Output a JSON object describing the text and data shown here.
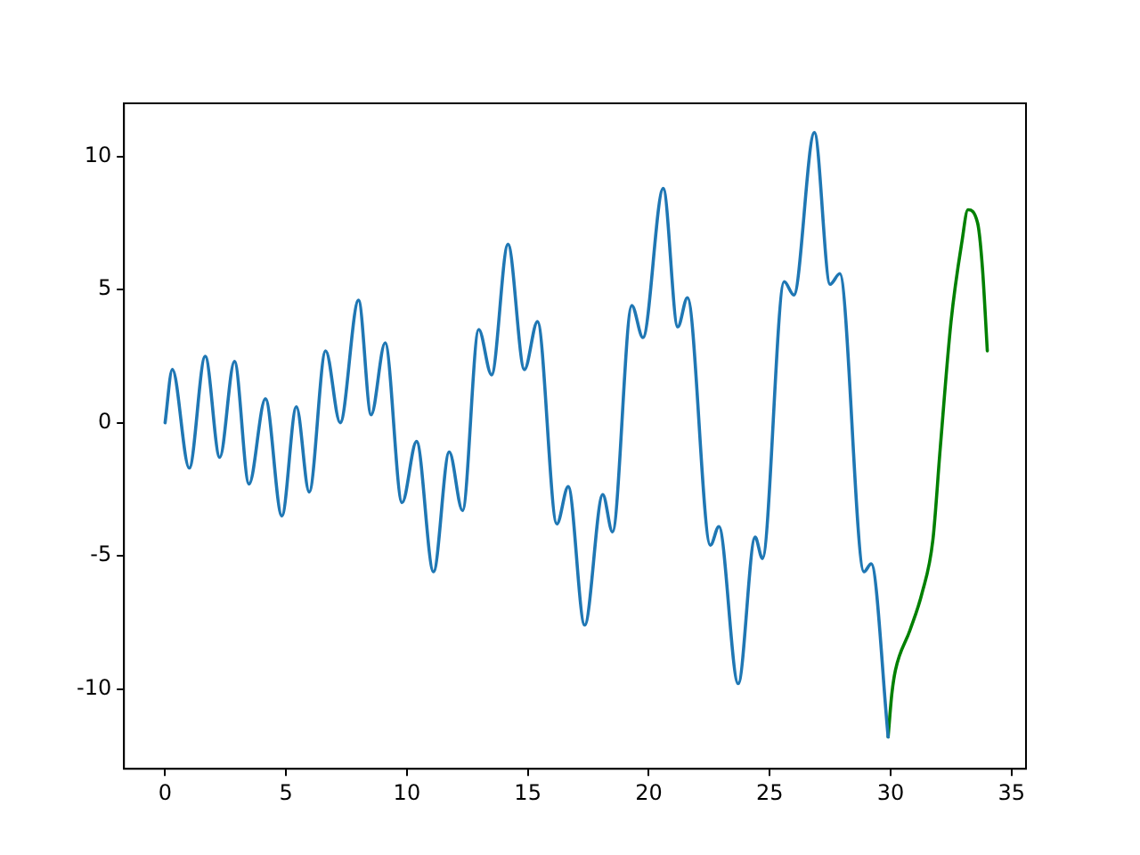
{
  "chart_data": {
    "type": "line",
    "xlim": [
      -1.7,
      35.6
    ],
    "ylim": [
      -13.0,
      12.0
    ],
    "xticks": [
      0,
      5,
      10,
      15,
      20,
      25,
      30,
      35
    ],
    "yticks": [
      -10,
      -5,
      0,
      5,
      10
    ],
    "grid": false,
    "legend": false,
    "marker": "none",
    "line_style": "solid",
    "series": [
      {
        "color": "#1f77b4",
        "x": [
          0,
          0.3,
          1.0,
          1.66,
          2.26,
          2.87,
          3.47,
          4.15,
          4.83,
          5.43,
          5.96,
          6.64,
          7.24,
          8.0,
          8.52,
          9.1,
          9.8,
          10.4,
          11.1,
          11.75,
          12.3,
          12.97,
          13.5,
          14.18,
          14.86,
          15.4,
          16.2,
          16.67,
          17.35,
          18.1,
          18.5,
          19.3,
          19.76,
          20.6,
          21.2,
          21.6,
          22.55,
          22.9,
          23.7,
          24.4,
          24.7,
          25.6,
          26.0,
          26.85,
          27.5,
          27.9,
          28.9,
          29.2,
          29.9
        ],
        "values": [
          0,
          2.0,
          -1.7,
          2.5,
          -1.3,
          2.3,
          -2.3,
          0.9,
          -3.5,
          0.6,
          -2.6,
          2.7,
          0.0,
          4.6,
          0.3,
          3.0,
          -3.0,
          -0.7,
          -5.6,
          -1.1,
          -3.3,
          3.5,
          1.8,
          6.7,
          2.0,
          3.8,
          -3.8,
          -2.4,
          -7.6,
          -2.7,
          -4.1,
          4.4,
          3.2,
          8.8,
          3.6,
          4.7,
          -4.6,
          -3.9,
          -9.8,
          -4.3,
          -5.1,
          5.3,
          4.8,
          10.9,
          5.2,
          5.6,
          -5.6,
          -5.3,
          -11.8
        ]
      },
      {
        "color": "#008000",
        "x": [
          29.9,
          30.05,
          30.2,
          30.8,
          31.3,
          31.75,
          32.05,
          32.5,
          32.95,
          33.2,
          33.6,
          33.8,
          34.0
        ],
        "values": [
          -11.8,
          -10.2,
          -9.3,
          -7.8,
          -6.4,
          -4.4,
          -1.0,
          3.8,
          6.8,
          8.0,
          7.5,
          5.8,
          2.7
        ]
      }
    ]
  }
}
